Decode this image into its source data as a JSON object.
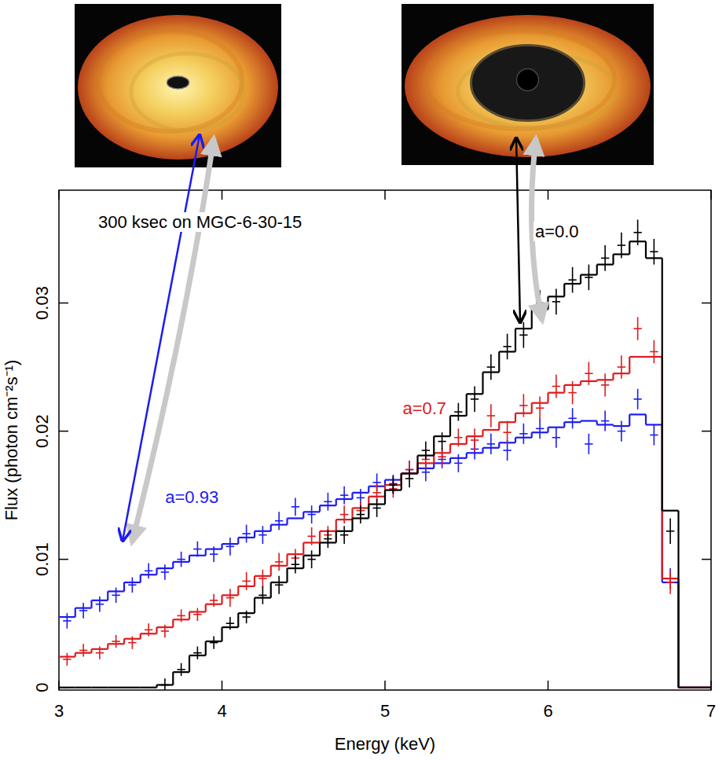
{
  "chart_data": {
    "type": "step",
    "annotation": "300 ksec on MGC-6-30-15",
    "x_label": "Energy (keV)",
    "y_label": "Flux (photon cm⁻²s⁻¹)",
    "xlim": [
      3,
      7
    ],
    "xticks": [
      3,
      4,
      5,
      6,
      7
    ],
    "ylim": [
      -0.0002,
      0.0388
    ],
    "yticks": [
      0,
      0.01,
      0.02,
      0.03
    ],
    "grid": false,
    "bins": [
      3,
      3.1,
      3.2,
      3.3,
      3.4,
      3.5,
      3.6,
      3.7,
      3.8,
      3.9,
      4,
      4.1,
      4.2,
      4.3,
      4.4,
      4.5,
      4.6,
      4.7,
      4.8,
      4.9,
      5,
      5.1,
      5.2,
      5.3,
      5.4,
      5.5,
      5.6,
      5.7,
      5.8,
      5.9,
      6,
      6.1,
      6.2,
      6.3,
      6.4,
      6.5,
      6.6,
      6.7,
      6.8,
      6.9,
      7
    ],
    "series": [
      {
        "name": "a=0.93",
        "color": "#1c1cf2",
        "marker": "cross",
        "line_style": "step",
        "values": [
          0.0055,
          0.0062,
          0.0068,
          0.0075,
          0.0082,
          0.0088,
          0.0093,
          0.0098,
          0.0103,
          0.0108,
          0.0112,
          0.0117,
          0.0122,
          0.0127,
          0.0132,
          0.0137,
          0.0142,
          0.0147,
          0.0152,
          0.0157,
          0.0162,
          0.0167,
          0.0171,
          0.0175,
          0.0179,
          0.0183,
          0.0187,
          0.0191,
          0.0195,
          0.0199,
          0.0203,
          0.0207,
          0.0208,
          0.0205,
          0.0204,
          0.0213,
          0.0205,
          0.0082,
          0,
          0
        ],
        "data": [
          0.0052,
          0.006,
          0.0065,
          0.0072,
          0.008,
          0.0091,
          0.009,
          0.01,
          0.0108,
          0.0104,
          0.011,
          0.012,
          0.0119,
          0.013,
          0.0141,
          0.0135,
          0.0145,
          0.015,
          0.0148,
          0.016,
          0.0159,
          0.017,
          0.0168,
          0.0178,
          0.0175,
          0.0186,
          0.019,
          0.0185,
          0.0198,
          0.0202,
          0.0195,
          0.021,
          0.019,
          0.0208,
          0.02,
          0.0225,
          0.0197,
          0.0085,
          null,
          null
        ],
        "errors": [
          0.0006,
          0.0006,
          0.0006,
          0.0006,
          0.0006,
          0.0006,
          0.0006,
          0.0006,
          0.0006,
          0.0006,
          0.0007,
          0.0007,
          0.0007,
          0.0007,
          0.0007,
          0.0007,
          0.0007,
          0.0007,
          0.0007,
          0.0007,
          0.0007,
          0.0007,
          0.0007,
          0.0007,
          0.0007,
          0.0008,
          0.0008,
          0.0008,
          0.0008,
          0.0008,
          0.0008,
          0.0008,
          0.0008,
          0.0008,
          0.0008,
          0.0008,
          0.0008,
          0.0008,
          null,
          null
        ]
      },
      {
        "name": "a=0.7",
        "color": "#e01a1c",
        "marker": "cross",
        "line_style": "step",
        "values": [
          0.0024,
          0.0027,
          0.003,
          0.0034,
          0.0038,
          0.0042,
          0.0047,
          0.0053,
          0.0059,
          0.0065,
          0.0072,
          0.0079,
          0.0087,
          0.0095,
          0.0104,
          0.0113,
          0.0122,
          0.0131,
          0.014,
          0.0149,
          0.0158,
          0.0167,
          0.0175,
          0.0183,
          0.019,
          0.0196,
          0.0201,
          0.0207,
          0.0214,
          0.0222,
          0.023,
          0.0236,
          0.0239,
          0.024,
          0.0245,
          0.0258,
          0.0258,
          0.0085,
          0,
          0
        ],
        "data": [
          0.0022,
          0.0029,
          0.0027,
          0.0036,
          0.0035,
          0.0045,
          0.0044,
          0.0056,
          0.0057,
          0.0068,
          0.007,
          0.0083,
          0.0085,
          0.0098,
          0.0101,
          0.0118,
          0.0119,
          0.0135,
          0.0138,
          0.0152,
          0.0155,
          0.017,
          0.0178,
          0.018,
          0.0195,
          0.0193,
          0.0212,
          0.0199,
          0.022,
          0.0218,
          0.0235,
          0.023,
          0.0245,
          0.0236,
          0.025,
          0.028,
          0.0262,
          0.0082,
          null,
          null
        ],
        "errors": [
          0.0005,
          0.0005,
          0.0005,
          0.0005,
          0.0005,
          0.0005,
          0.0005,
          0.0005,
          0.0005,
          0.0005,
          0.0007,
          0.0007,
          0.0007,
          0.0007,
          0.0007,
          0.0007,
          0.0007,
          0.0007,
          0.0007,
          0.0007,
          0.0007,
          0.0007,
          0.0007,
          0.0007,
          0.0007,
          0.0009,
          0.0009,
          0.0009,
          0.0009,
          0.0009,
          0.0009,
          0.0009,
          0.0009,
          0.0009,
          0.0009,
          0.0009,
          0.0009,
          0.0009,
          null,
          null
        ]
      },
      {
        "name": "a=0.0",
        "color": "#000000",
        "marker": "cross",
        "line_style": "step",
        "values": [
          0,
          0,
          0,
          0,
          0,
          0,
          0.0002,
          0.0012,
          0.0025,
          0.0036,
          0.0047,
          0.0058,
          0.007,
          0.0082,
          0.0093,
          0.0103,
          0.0113,
          0.0122,
          0.0132,
          0.0143,
          0.0154,
          0.0167,
          0.0181,
          0.0196,
          0.0212,
          0.0229,
          0.0246,
          0.0262,
          0.028,
          0.0295,
          0.0305,
          0.0315,
          0.0322,
          0.033,
          0.0338,
          0.0348,
          0.0335,
          0.0138,
          0,
          0
        ],
        "data": [
          null,
          null,
          null,
          null,
          null,
          null,
          0.0002,
          0.0014,
          0.0027,
          0.0035,
          0.005,
          0.0055,
          0.0072,
          0.008,
          0.0096,
          0.01,
          0.0116,
          0.0119,
          0.0135,
          0.014,
          0.0158,
          0.0163,
          0.0185,
          0.0192,
          0.0215,
          0.0225,
          0.025,
          0.0266,
          0.0275,
          0.03,
          0.0301,
          0.0318,
          0.032,
          0.0335,
          0.0345,
          0.0355,
          0.034,
          0.0122,
          null,
          null
        ],
        "errors": [
          null,
          null,
          null,
          null,
          null,
          null,
          0.0005,
          0.0005,
          0.0005,
          0.0005,
          0.0005,
          0.0005,
          0.0007,
          0.0007,
          0.0007,
          0.0007,
          0.0007,
          0.0007,
          0.0007,
          0.0007,
          0.0007,
          0.0007,
          0.0007,
          0.0007,
          0.0007,
          0.001,
          0.001,
          0.001,
          0.001,
          0.001,
          0.001,
          0.001,
          0.001,
          0.001,
          0.001,
          0.001,
          0.001,
          0.001,
          null,
          null
        ]
      }
    ]
  }
}
